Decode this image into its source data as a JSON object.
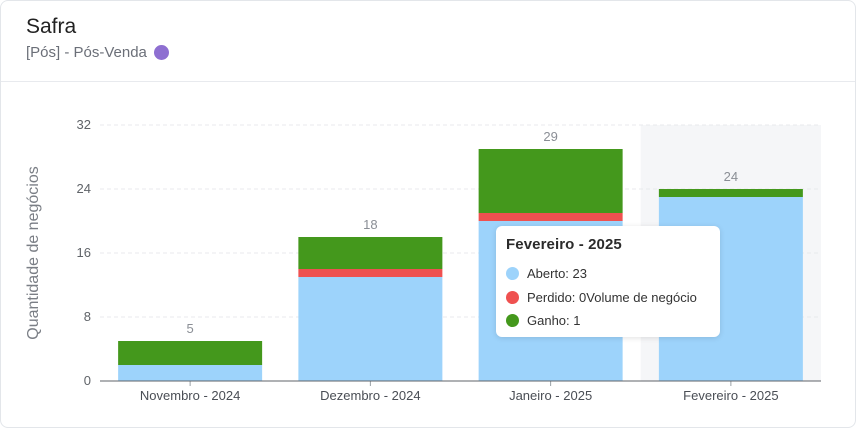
{
  "header": {
    "title": "Safra",
    "subtitle": "[Pós] - Pós-Venda",
    "dot_color": "#8e6fd1"
  },
  "colors": {
    "aberto": "#9dd3fb",
    "perdido": "#ef5150",
    "ganho": "#44981c"
  },
  "chart_data": {
    "type": "bar",
    "stacked": true,
    "ylabel": "Quantidade de negócios",
    "xlabel": "",
    "ylim": [
      0,
      32
    ],
    "yticks": [
      0,
      8,
      16,
      24,
      32
    ],
    "categories": [
      "Novembro - 2024",
      "Dezembro - 2024",
      "Janeiro - 2025",
      "Fevereiro - 2025"
    ],
    "series": [
      {
        "name": "Aberto",
        "values": [
          2,
          13,
          20,
          23
        ]
      },
      {
        "name": "Perdido",
        "values": [
          0,
          1,
          1,
          0
        ]
      },
      {
        "name": "Ganho",
        "values": [
          3,
          4,
          8,
          1
        ]
      }
    ],
    "totals": [
      "5",
      "18",
      "29",
      "24"
    ],
    "grid": true,
    "highlighted_category": "Fevereiro - 2025"
  },
  "tooltip": {
    "title": "Fevereiro - 2025",
    "rows": [
      {
        "text": "Aberto: 23",
        "color": "#9dd3fb"
      },
      {
        "text": "Perdido: 0Volume de negócio",
        "color": "#ef5150"
      },
      {
        "text": "Ganho: 1",
        "color": "#44981c"
      }
    ]
  }
}
